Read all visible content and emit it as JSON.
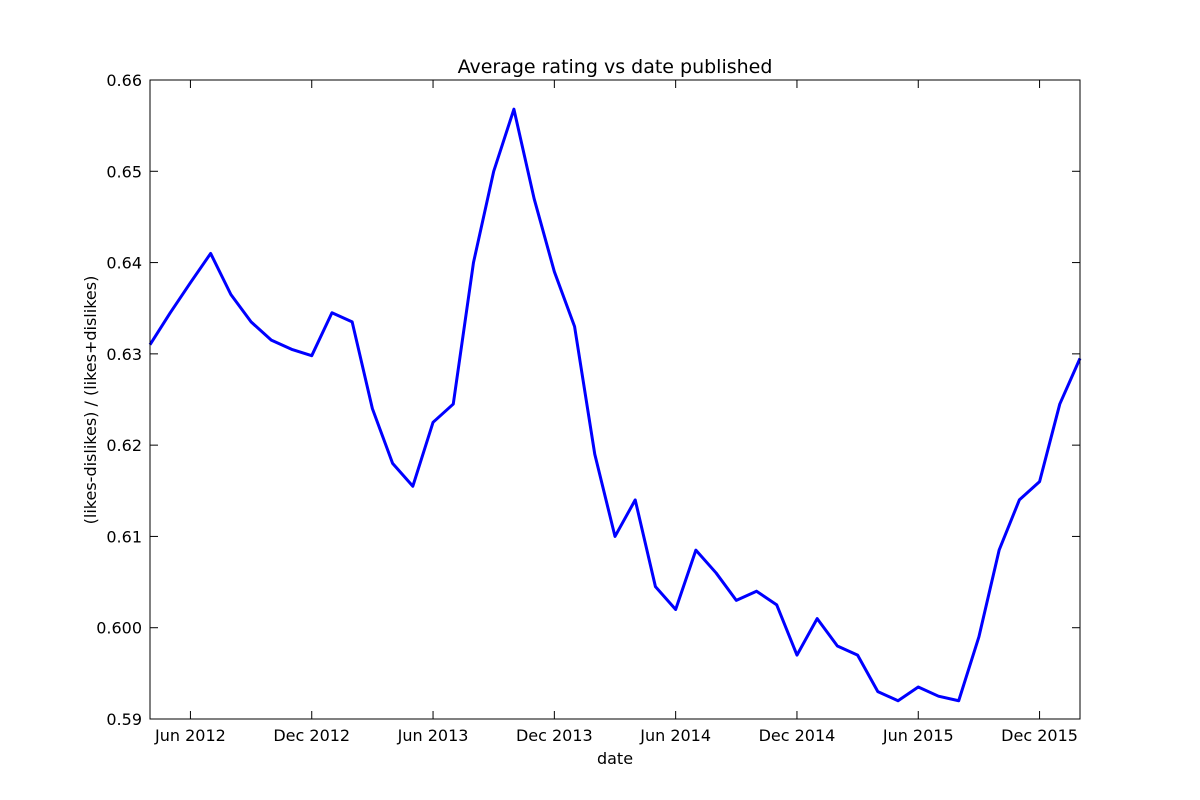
{
  "chart_data": {
    "type": "line",
    "title": "Average rating vs date published",
    "xlabel": "date",
    "ylabel": "(likes-dislikes) / (likes+dislikes)",
    "x": [
      "2012-04",
      "2012-05",
      "2012-06",
      "2012-07",
      "2012-08",
      "2012-09",
      "2012-10",
      "2012-11",
      "2012-12",
      "2013-01",
      "2013-02",
      "2013-03",
      "2013-04",
      "2013-05",
      "2013-06",
      "2013-07",
      "2013-08",
      "2013-09",
      "2013-10",
      "2013-11",
      "2013-12",
      "2014-01",
      "2014-02",
      "2014-03",
      "2014-04",
      "2014-05",
      "2014-06",
      "2014-07",
      "2014-08",
      "2014-09",
      "2014-10",
      "2014-11",
      "2014-12",
      "2015-01",
      "2015-02",
      "2015-03",
      "2015-04",
      "2015-05",
      "2015-06",
      "2015-07",
      "2015-08",
      "2015-09",
      "2015-10",
      "2015-11",
      "2015-12",
      "2016-01",
      "2016-02"
    ],
    "series": [
      {
        "name": "rating",
        "color": "#0000ff",
        "values": [
          0.631,
          0.6345,
          0.6378,
          0.641,
          0.6365,
          0.6335,
          0.6315,
          0.6305,
          0.6298,
          0.6345,
          0.6335,
          0.624,
          0.618,
          0.6155,
          0.6225,
          0.6245,
          0.64,
          0.65,
          0.6568,
          0.647,
          0.639,
          0.633,
          0.619,
          0.61,
          0.614,
          0.6045,
          0.602,
          0.6085,
          0.606,
          0.603,
          0.604,
          0.6025,
          0.597,
          0.601,
          0.598,
          0.597,
          0.593,
          0.592,
          0.5935,
          0.5925,
          0.592,
          0.599,
          0.6085,
          0.614,
          0.616,
          0.6245,
          0.6295
        ]
      }
    ],
    "xlim": [
      "2012-04",
      "2016-02"
    ],
    "xticks": [
      {
        "value": "2012-06",
        "label": "Jun 2012"
      },
      {
        "value": "2012-12",
        "label": "Dec 2012"
      },
      {
        "value": "2013-06",
        "label": "Jun 2013"
      },
      {
        "value": "2013-12",
        "label": "Dec 2013"
      },
      {
        "value": "2014-06",
        "label": "Jun 2014"
      },
      {
        "value": "2014-12",
        "label": "Dec 2014"
      },
      {
        "value": "2015-06",
        "label": "Jun 2015"
      },
      {
        "value": "2015-12",
        "label": "Dec 2015"
      }
    ],
    "ylim": [
      0.59,
      0.66
    ],
    "yticks": [
      0.59,
      {
        "value": 0.6,
        "label": "0.600"
      },
      0.61,
      0.62,
      0.63,
      0.64,
      0.65,
      0.66
    ]
  }
}
